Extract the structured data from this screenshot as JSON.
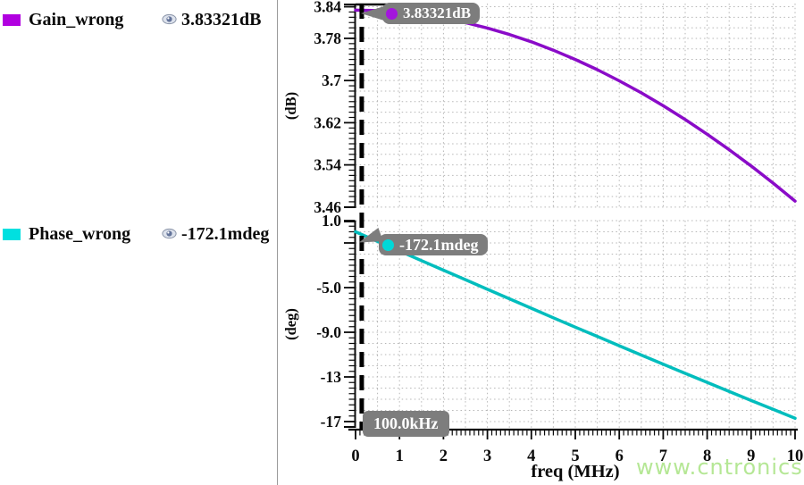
{
  "legend": {
    "rows": [
      {
        "label": "Gain_wrong",
        "swatch_color": "#b100e0",
        "value": "3.83321dB"
      },
      {
        "label": "Phase_wrong",
        "swatch_color": "#00e0e0",
        "value": "-172.1mdeg"
      }
    ]
  },
  "markers": {
    "freq_label": "100.0kHz",
    "gain": {
      "label": "3.83321dB",
      "dot_color": "#a316dd"
    },
    "phase": {
      "label": "-172.1mdeg",
      "dot_color": "#00d8d8"
    }
  },
  "watermark": "www.cntronics.com",
  "chart_data": {
    "type": "line",
    "xlabel": "freq (MHz)",
    "x_axis": {
      "min": 0,
      "max": 10,
      "major_ticks": [
        0,
        1,
        2,
        3,
        4,
        5,
        6,
        7,
        8,
        9,
        10
      ],
      "tick_labels": [
        "0",
        "1",
        "2",
        "3",
        "4",
        "5",
        "6",
        "7",
        "8",
        "9",
        "10"
      ],
      "minor_step": 0.1,
      "grid_step": 0.5
    },
    "marker": {
      "x": 0.1,
      "label": "100.0kHz"
    },
    "plots": [
      {
        "ylabel": "(dB)",
        "ymax": 3.846,
        "ymin": 3.458,
        "grid_step": 0.02,
        "minor_step": 0.01,
        "major_ticks": [
          3.84,
          3.78,
          3.7,
          3.62,
          3.54,
          3.46
        ],
        "tick_labels": [
          {
            "v": 3.84,
            "t": "3.84"
          },
          {
            "v": 3.78,
            "t": "3.78"
          },
          {
            "v": 3.7,
            "t": "3.7"
          },
          {
            "v": 3.62,
            "t": "3.62"
          },
          {
            "v": 3.54,
            "t": "3.54"
          },
          {
            "v": 3.46,
            "t": "3.46"
          }
        ],
        "marker_value": "3.83321dB",
        "series": {
          "name": "Gain_wrong",
          "color": "#8a0bc8",
          "x": [
            0,
            0.5,
            1,
            1.5,
            2,
            2.5,
            3,
            3.5,
            4,
            4.5,
            5,
            5.5,
            6,
            6.5,
            7,
            7.5,
            8,
            8.5,
            9,
            9.5,
            10
          ],
          "y": [
            3.8335,
            3.8326,
            3.8297,
            3.825,
            3.8184,
            3.8099,
            3.7996,
            3.7874,
            3.7735,
            3.7576,
            3.74,
            3.7207,
            3.6995,
            3.6767,
            3.6522,
            3.626,
            3.5982,
            3.5688,
            3.5379,
            3.5054,
            3.4713
          ]
        }
      },
      {
        "ylabel": "(deg)",
        "ymax": 1.0,
        "ymin": -17.56,
        "grid_step": 1.0,
        "minor_step": 0.5,
        "major_ticks": [
          1,
          -1,
          -5,
          -9,
          -13,
          -17
        ],
        "tick_labels": [
          {
            "v": 1.0,
            "t": "1.0"
          },
          {
            "v": -5.0,
            "t": "-5.0"
          },
          {
            "v": -9.0,
            "t": "-9.0"
          },
          {
            "v": -13,
            "t": "-13"
          },
          {
            "v": -17,
            "t": "-17"
          }
        ],
        "marker_value": "-172.1mdeg",
        "series": {
          "name": "Phase_wrong",
          "color": "#00bdbd",
          "x": [
            0,
            0.5,
            1,
            1.5,
            2,
            2.5,
            3,
            3.5,
            4,
            4.5,
            5,
            5.5,
            6,
            6.5,
            7,
            7.5,
            8,
            8.5,
            9,
            9.5,
            10
          ],
          "y": [
            0,
            -0.86,
            -1.72,
            -2.58,
            -3.44,
            -4.29,
            -5.15,
            -6.0,
            -6.85,
            -7.7,
            -8.54,
            -9.37,
            -10.21,
            -11.04,
            -11.86,
            -12.68,
            -13.49,
            -14.3,
            -15.11,
            -15.9,
            -16.7
          ]
        }
      }
    ]
  }
}
